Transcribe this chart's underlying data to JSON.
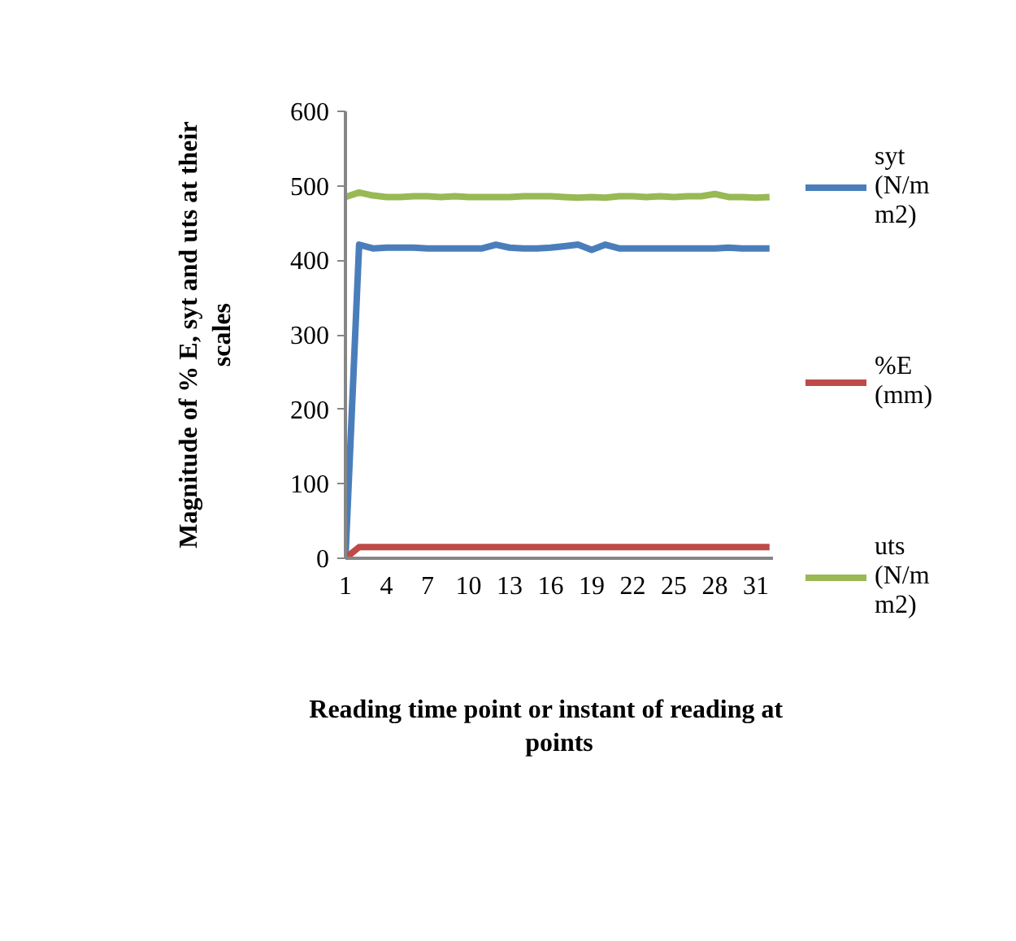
{
  "chart_data": {
    "type": "line",
    "xlabel": "Reading  time point  or instant  of  reading at points",
    "ylabel": "Magnitude of % E, syt and uts at their scales",
    "categories": [
      "1",
      null,
      null,
      "4",
      null,
      null,
      "7",
      null,
      null,
      "10",
      null,
      null,
      "13",
      null,
      null,
      "16",
      null,
      null,
      "19",
      null,
      null,
      "22",
      null,
      null,
      "25",
      null,
      null,
      "28",
      null,
      null,
      "31",
      null
    ],
    "series": [
      {
        "name": "syt (N/mm2)",
        "color": "#4a7ebb",
        "values": [
          0,
          421,
          416,
          417,
          417,
          417,
          416,
          416,
          416,
          416,
          416,
          421,
          417,
          416,
          416,
          417,
          419,
          421,
          414,
          421,
          416,
          416,
          416,
          416,
          416,
          416,
          416,
          416,
          417,
          416,
          416,
          416
        ]
      },
      {
        "name": "%E (mm)",
        "color": "#be4b48",
        "values": [
          0,
          15,
          15,
          15,
          15,
          15,
          15,
          15,
          15,
          15,
          15,
          15,
          15,
          15,
          15,
          15,
          15,
          15,
          15,
          15,
          15,
          15,
          15,
          15,
          15,
          15,
          15,
          15,
          15,
          15,
          15,
          15
        ]
      },
      {
        "name": "uts (N/mm2)",
        "color": "#98b954",
        "values": [
          485,
          491,
          487,
          485,
          485,
          486,
          486,
          485,
          486,
          485,
          485,
          485,
          485,
          486,
          486,
          486,
          485,
          484,
          485,
          484,
          486,
          486,
          485,
          486,
          485,
          486,
          486,
          489,
          485,
          485,
          484,
          485
        ]
      }
    ],
    "ylim": [
      0,
      600
    ],
    "yticks": [
      0,
      100,
      200,
      300,
      400,
      500,
      600
    ],
    "grid": false,
    "legend": "right",
    "line_style": "solid",
    "marker": "none"
  }
}
